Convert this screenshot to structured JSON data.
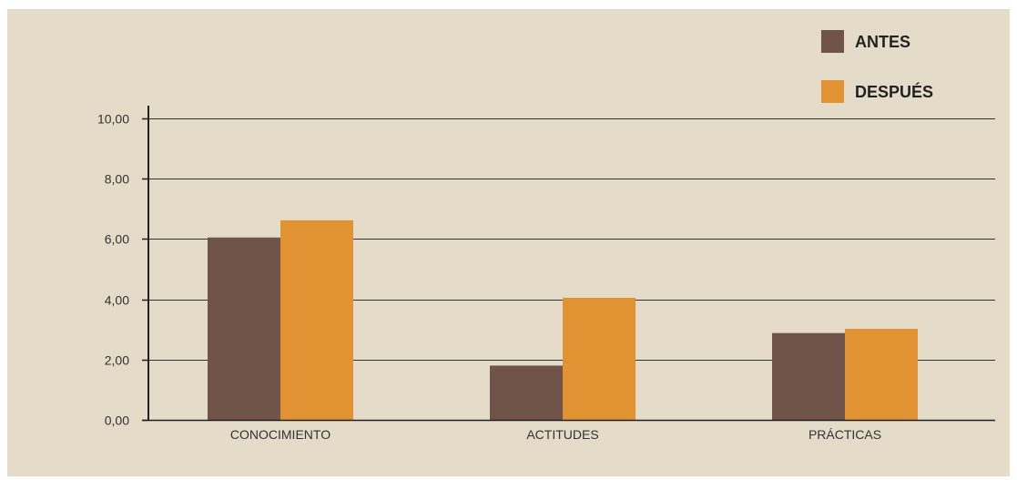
{
  "chart_data": {
    "type": "bar",
    "title": "",
    "xlabel": "",
    "ylabel": "",
    "ylim": [
      0,
      10
    ],
    "yticks": [
      "0,00",
      "2,00",
      "4,00",
      "6,00",
      "8,00",
      "10,00"
    ],
    "categories": [
      "CONOCIMIENTO",
      "ACTITUDES",
      "PRÁCTICAS"
    ],
    "series": [
      {
        "name": "ANTES",
        "color": "#70544a",
        "values": [
          6.05,
          1.8,
          2.88
        ]
      },
      {
        "name": "DESPUÉS",
        "color": "#e19232",
        "values": [
          6.62,
          4.05,
          3.02
        ]
      }
    ],
    "grid": true,
    "legend_position": "top-right"
  },
  "colors": {
    "background": "#e4dbc9",
    "axis": "#222222",
    "grid": "#333333"
  }
}
